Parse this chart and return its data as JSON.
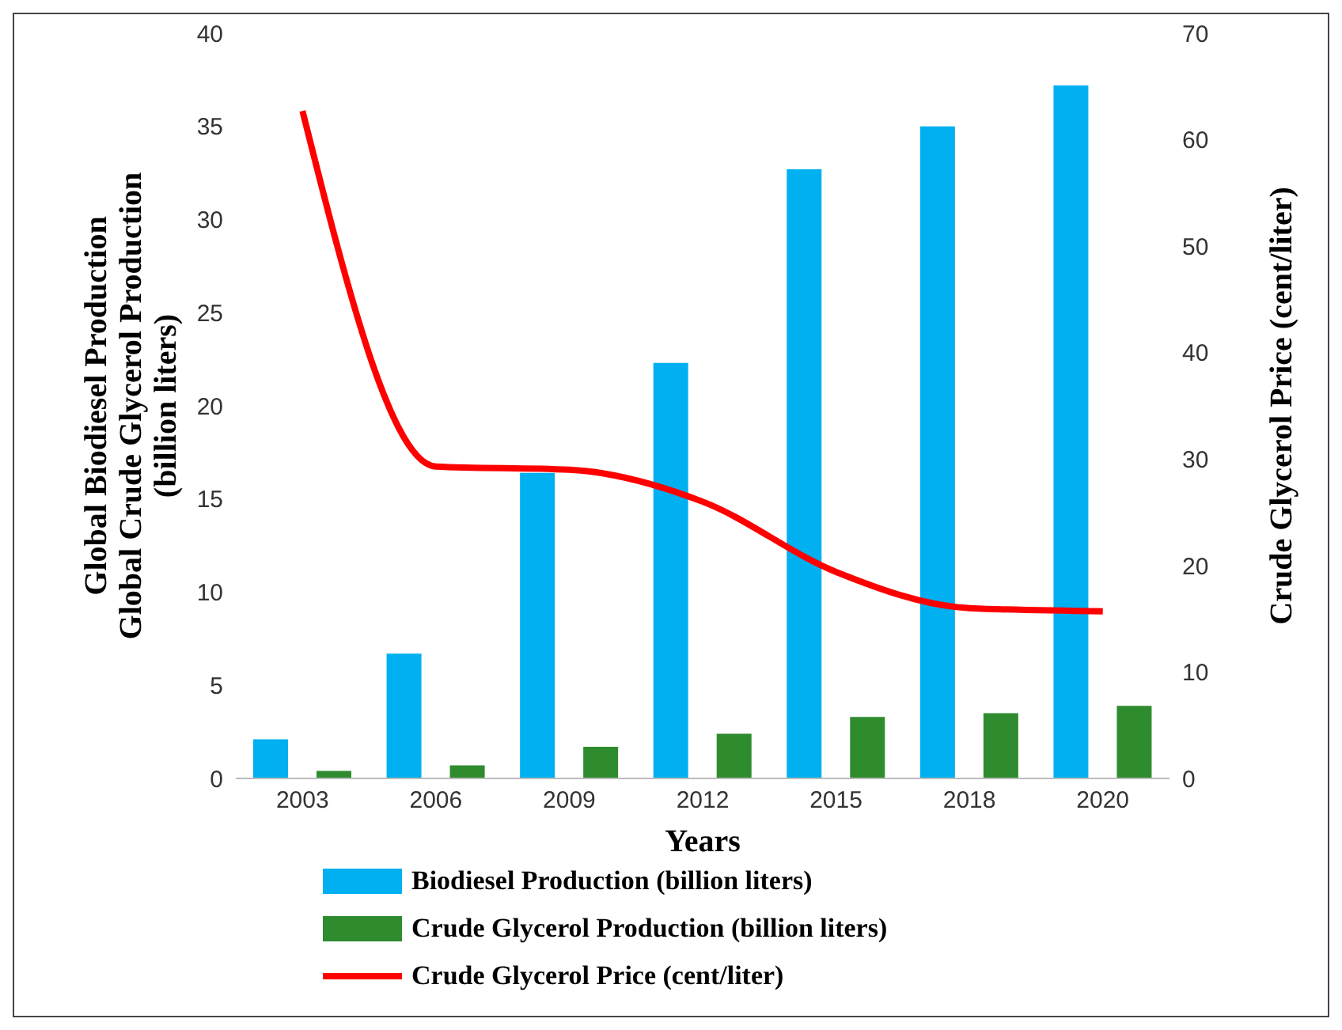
{
  "chart_data": {
    "type": "bar",
    "categories": [
      "2003",
      "2006",
      "2009",
      "2012",
      "2015",
      "2018",
      "2020"
    ],
    "series": [
      {
        "name": "Biodiesel Production (billion liters)",
        "color": "#00b0f0",
        "values": [
          2.1,
          6.7,
          16.4,
          22.3,
          32.7,
          35,
          37.2
        ]
      },
      {
        "name": "Crude Glycerol Production (billion liters)",
        "color": "#2e8b2e",
        "values": [
          0.4,
          0.7,
          1.7,
          2.4,
          3.3,
          3.5,
          3.9
        ]
      },
      {
        "name": "Crude Glycerol Price (cent/liter)",
        "color": "#ff0000",
        "type": "line",
        "axis": "y2",
        "values": [
          62.7,
          29.3,
          29,
          26,
          19.4,
          16,
          15.7
        ]
      }
    ],
    "xlabel": "Years",
    "ylabel": "Global Biodiesel Production\nGlobal Crude Glycerol Production\n(billion liters)",
    "y2label": "Crude Glycerol Price (cent/liter)",
    "ylim": [
      0,
      40
    ],
    "yticks": [
      0,
      5,
      10,
      15,
      20,
      25,
      30,
      35,
      40
    ],
    "y2lim": [
      0,
      70
    ],
    "y2ticks": [
      0,
      10,
      20,
      30,
      40,
      50,
      60,
      70
    ],
    "grid": false,
    "legend": "bottom",
    "marker": "none"
  }
}
